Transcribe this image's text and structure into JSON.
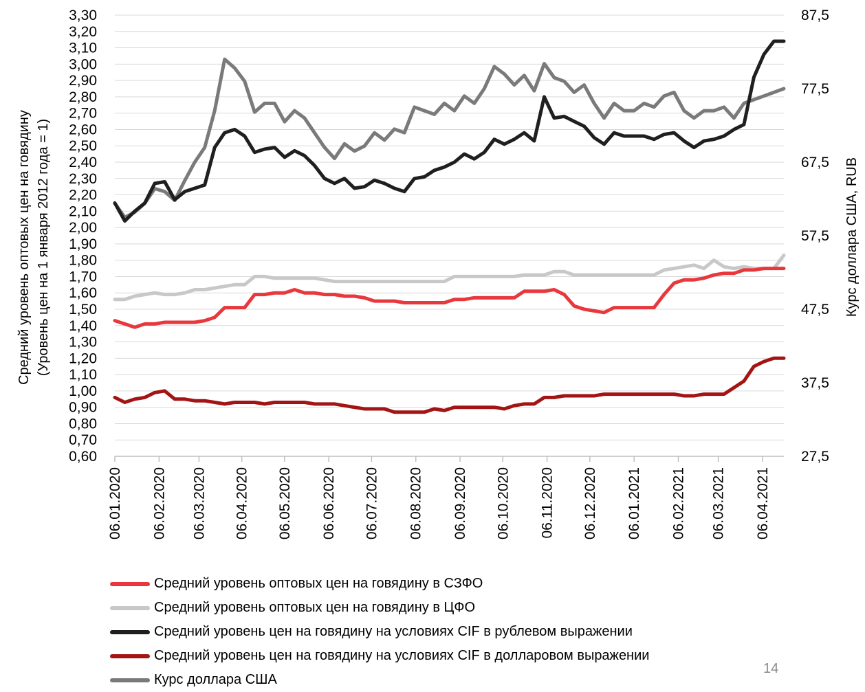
{
  "page_number": "14",
  "chart_data": {
    "type": "line",
    "ylabel_left": [
      "Средний  уровень  оптовых цен на говядину",
      "(Уровень цен на 1 января 2012 года = 1)"
    ],
    "ylabel_right": "Курс доллара США, RUB",
    "ylim_left": [
      0.6,
      3.3
    ],
    "yticks_left": [
      "0,60",
      "0,70",
      "0,80",
      "0,90",
      "1,00",
      "1,10",
      "1,20",
      "1,30",
      "1,40",
      "1,50",
      "1,60",
      "1,70",
      "1,80",
      "1,90",
      "2,00",
      "2,10",
      "2,20",
      "2,30",
      "2,40",
      "2,50",
      "2,60",
      "2,70",
      "2,80",
      "2,90",
      "3,00",
      "3,10",
      "3,20",
      "3,30"
    ],
    "ylim_right": [
      27.5,
      87.5
    ],
    "yticks_right": [
      "27,5",
      "37,5",
      "47,5",
      "57,5",
      "67,5",
      "77,5",
      "87,5"
    ],
    "xticks": [
      "06.01.2020",
      "06.02.2020",
      "06.03.2020",
      "06.04.2020",
      "06.05.2020",
      "06.06.2020",
      "06.07.2020",
      "06.08.2020",
      "06.09.2020",
      "06.10.2020",
      "06.11.2020",
      "06.12.2020",
      "06.01.2021",
      "06.02.2021",
      "06.03.2021",
      "06.04.2021"
    ],
    "grid": true,
    "legend_position": "bottom",
    "series": [
      {
        "name": "Средний уровень оптовых цен на говядину в СЗФО",
        "color": "#e8383d",
        "axis": "left",
        "values": [
          1.43,
          1.41,
          1.39,
          1.41,
          1.41,
          1.42,
          1.42,
          1.42,
          1.42,
          1.43,
          1.45,
          1.51,
          1.51,
          1.51,
          1.59,
          1.59,
          1.6,
          1.6,
          1.62,
          1.6,
          1.6,
          1.59,
          1.59,
          1.58,
          1.58,
          1.57,
          1.55,
          1.55,
          1.55,
          1.54,
          1.54,
          1.54,
          1.54,
          1.54,
          1.56,
          1.56,
          1.57,
          1.57,
          1.57,
          1.57,
          1.57,
          1.61,
          1.61,
          1.61,
          1.62,
          1.59,
          1.52,
          1.5,
          1.49,
          1.48,
          1.51,
          1.51,
          1.51,
          1.51,
          1.51,
          1.59,
          1.66,
          1.68,
          1.68,
          1.69,
          1.71,
          1.72,
          1.72,
          1.74,
          1.74,
          1.75,
          1.75,
          1.75
        ]
      },
      {
        "name": "Средний уровень оптовых цен на говядину в ЦФО",
        "color": "#c8c8c8",
        "axis": "left",
        "values": [
          1.56,
          1.56,
          1.58,
          1.59,
          1.6,
          1.59,
          1.59,
          1.6,
          1.62,
          1.62,
          1.63,
          1.64,
          1.65,
          1.65,
          1.7,
          1.7,
          1.69,
          1.69,
          1.69,
          1.69,
          1.69,
          1.68,
          1.67,
          1.67,
          1.67,
          1.67,
          1.67,
          1.67,
          1.67,
          1.67,
          1.67,
          1.67,
          1.67,
          1.67,
          1.7,
          1.7,
          1.7,
          1.7,
          1.7,
          1.7,
          1.7,
          1.71,
          1.71,
          1.71,
          1.73,
          1.73,
          1.71,
          1.71,
          1.71,
          1.71,
          1.71,
          1.71,
          1.71,
          1.71,
          1.71,
          1.74,
          1.75,
          1.76,
          1.77,
          1.75,
          1.8,
          1.76,
          1.75,
          1.76,
          1.75,
          1.75,
          1.75,
          1.83
        ]
      },
      {
        "name": "Средний уровень цен на говядину на условиях CIF в рублевом выражении",
        "color": "#1f1f1f",
        "axis": "left",
        "values": [
          2.15,
          2.04,
          2.1,
          2.15,
          2.27,
          2.28,
          2.17,
          2.22,
          2.24,
          2.26,
          2.49,
          2.58,
          2.6,
          2.56,
          2.46,
          2.48,
          2.49,
          2.43,
          2.47,
          2.44,
          2.38,
          2.3,
          2.27,
          2.3,
          2.24,
          2.25,
          2.29,
          2.27,
          2.24,
          2.22,
          2.3,
          2.31,
          2.35,
          2.37,
          2.4,
          2.45,
          2.42,
          2.46,
          2.54,
          2.51,
          2.54,
          2.58,
          2.53,
          2.8,
          2.67,
          2.68,
          2.65,
          2.62,
          2.55,
          2.51,
          2.58,
          2.56,
          2.56,
          2.56,
          2.54,
          2.57,
          2.58,
          2.53,
          2.49,
          2.53,
          2.54,
          2.56,
          2.6,
          2.63,
          2.92,
          3.06,
          3.14,
          3.14
        ]
      },
      {
        "name": "Средний уровень цен на говядину на условиях CIF в долларовом выражении",
        "color": "#a31515",
        "axis": "left",
        "values": [
          0.96,
          0.93,
          0.95,
          0.96,
          0.99,
          1.0,
          0.95,
          0.95,
          0.94,
          0.94,
          0.93,
          0.92,
          0.93,
          0.93,
          0.93,
          0.92,
          0.93,
          0.93,
          0.93,
          0.93,
          0.92,
          0.92,
          0.92,
          0.91,
          0.9,
          0.89,
          0.89,
          0.89,
          0.87,
          0.87,
          0.87,
          0.87,
          0.89,
          0.88,
          0.9,
          0.9,
          0.9,
          0.9,
          0.9,
          0.89,
          0.91,
          0.92,
          0.92,
          0.96,
          0.96,
          0.97,
          0.97,
          0.97,
          0.97,
          0.98,
          0.98,
          0.98,
          0.98,
          0.98,
          0.98,
          0.98,
          0.98,
          0.97,
          0.97,
          0.98,
          0.98,
          0.98,
          1.02,
          1.06,
          1.15,
          1.18,
          1.2,
          1.2
        ]
      },
      {
        "name": "Курс доллара США",
        "color": "#7a7a7a",
        "axis": "right",
        "values": [
          61.9,
          60.0,
          60.7,
          61.9,
          63.9,
          63.5,
          62.3,
          65.0,
          67.5,
          69.5,
          74.5,
          81.5,
          80.3,
          78.5,
          74.3,
          75.5,
          75.5,
          73.0,
          74.5,
          73.5,
          71.5,
          69.5,
          68.0,
          70.0,
          69.0,
          69.7,
          71.5,
          70.5,
          72.0,
          71.5,
          75.0,
          74.5,
          74.0,
          75.5,
          74.5,
          76.5,
          75.5,
          77.5,
          80.5,
          79.5,
          78.0,
          79.3,
          77.2,
          80.9,
          79.0,
          78.5,
          77.0,
          78.0,
          75.5,
          73.5,
          75.5,
          74.5,
          74.5,
          75.5,
          75.0,
          76.5,
          77.0,
          74.5,
          73.5,
          74.5,
          74.5,
          75.0,
          73.5,
          75.5,
          76.0,
          76.5,
          77.0,
          77.5
        ]
      }
    ]
  }
}
